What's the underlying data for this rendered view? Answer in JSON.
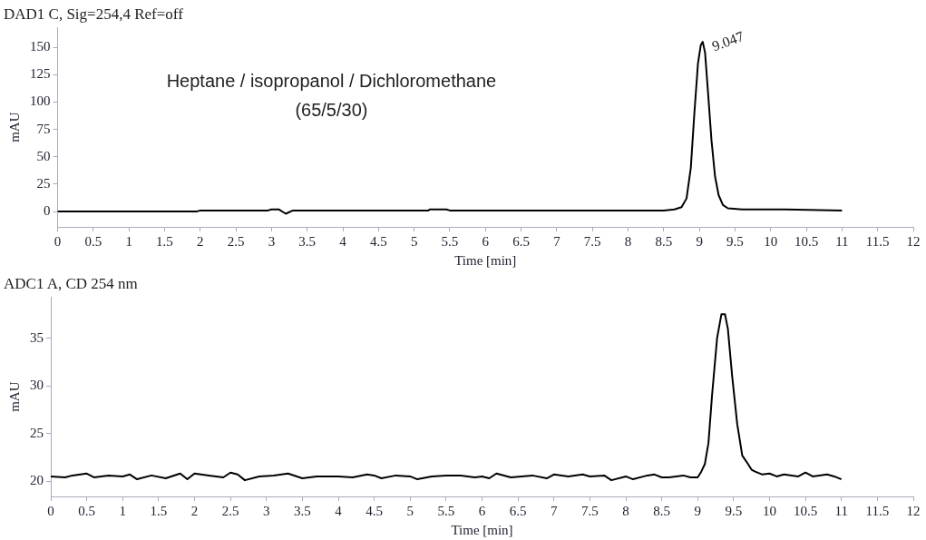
{
  "chart_data": [
    {
      "type": "line",
      "title": "DAD1 C, Sig=254,4 Ref=off",
      "xlabel": "Time [min]",
      "ylabel": "mAU",
      "annotations": [
        "Heptane / isopropanol / Dichloromethane",
        "(65/5/30)",
        {
          "text": "9.047",
          "x": 9.047,
          "y": 155
        }
      ],
      "xlim": [
        0,
        12
      ],
      "xticks": [
        0,
        0.5,
        1,
        1.5,
        2,
        2.5,
        3,
        3.5,
        4,
        4.5,
        5,
        5.5,
        6,
        6.5,
        7,
        7.5,
        8,
        8.5,
        9,
        9.5,
        10,
        10.5,
        11,
        11.5,
        12
      ],
      "ylim": [
        -14,
        168
      ],
      "yticks": [
        0,
        25,
        50,
        75,
        100,
        125,
        150
      ],
      "grid": false,
      "legend": false,
      "marker": "none",
      "line_style": "solid",
      "series": [
        {
          "color": "#000000",
          "x": [
            0,
            1.95,
            2.0,
            2.95,
            3.0,
            3.1,
            3.2,
            3.3,
            5.2,
            5.22,
            5.45,
            5.5,
            8.5,
            8.65,
            8.75,
            8.82,
            8.88,
            8.93,
            8.98,
            9.02,
            9.047,
            9.08,
            9.12,
            9.17,
            9.22,
            9.27,
            9.33,
            9.4,
            9.6,
            10.2,
            11
          ],
          "values": [
            0,
            0,
            1,
            1,
            2,
            2,
            -2,
            1,
            1,
            2,
            2,
            1,
            1,
            2,
            4,
            12,
            40,
            90,
            135,
            152,
            155,
            145,
            110,
            65,
            32,
            15,
            6,
            3,
            2,
            2,
            1
          ]
        }
      ]
    },
    {
      "type": "line",
      "title": "ADC1 A, CD 254 nm",
      "xlabel": "Time [min]",
      "ylabel": "mAU",
      "xlim": [
        0,
        12
      ],
      "xticks": [
        0,
        0.5,
        1,
        1.5,
        2,
        2.5,
        3,
        3.5,
        4,
        4.5,
        5,
        5.5,
        6,
        6.5,
        7,
        7.5,
        8,
        8.5,
        9,
        9.5,
        10,
        10.5,
        11,
        11.5,
        12
      ],
      "ylim": [
        18.4,
        39.3
      ],
      "yticks": [
        20,
        25,
        30,
        35
      ],
      "grid": false,
      "legend": false,
      "marker": "none",
      "line_style": "solid",
      "series": [
        {
          "color": "#000000",
          "x": [
            0,
            0.2,
            0.3,
            0.5,
            0.6,
            0.8,
            1.0,
            1.1,
            1.2,
            1.4,
            1.6,
            1.8,
            1.9,
            2.0,
            2.2,
            2.4,
            2.5,
            2.6,
            2.7,
            2.9,
            3.1,
            3.3,
            3.5,
            3.7,
            4.0,
            4.2,
            4.4,
            4.5,
            4.6,
            4.8,
            5.0,
            5.1,
            5.3,
            5.5,
            5.7,
            5.9,
            6.0,
            6.1,
            6.2,
            6.4,
            6.7,
            6.9,
            7.0,
            7.2,
            7.4,
            7.5,
            7.7,
            7.8,
            8.0,
            8.1,
            8.3,
            8.4,
            8.5,
            8.6,
            8.8,
            8.9,
            9.0,
            9.05,
            9.1,
            9.15,
            9.2,
            9.27,
            9.33,
            9.38,
            9.42,
            9.48,
            9.55,
            9.62,
            9.7,
            9.75,
            9.8,
            9.9,
            10.0,
            10.1,
            10.2,
            10.4,
            10.5,
            10.6,
            10.8,
            10.9,
            11.0
          ],
          "values": [
            20.5,
            20.4,
            20.6,
            20.8,
            20.4,
            20.6,
            20.5,
            20.7,
            20.2,
            20.6,
            20.3,
            20.8,
            20.2,
            20.8,
            20.6,
            20.4,
            20.9,
            20.7,
            20.1,
            20.5,
            20.6,
            20.8,
            20.3,
            20.5,
            20.5,
            20.4,
            20.7,
            20.6,
            20.3,
            20.6,
            20.5,
            20.2,
            20.5,
            20.6,
            20.6,
            20.4,
            20.5,
            20.3,
            20.8,
            20.4,
            20.6,
            20.3,
            20.7,
            20.5,
            20.7,
            20.5,
            20.6,
            20.1,
            20.5,
            20.2,
            20.6,
            20.7,
            20.4,
            20.4,
            20.6,
            20.4,
            20.4,
            21,
            21.8,
            24,
            29,
            35,
            37.5,
            37.5,
            36,
            31,
            26,
            22.7,
            21.8,
            21.2,
            21,
            20.7,
            20.8,
            20.5,
            20.7,
            20.5,
            20.9,
            20.5,
            20.7,
            20.5,
            20.2
          ]
        }
      ]
    }
  ]
}
